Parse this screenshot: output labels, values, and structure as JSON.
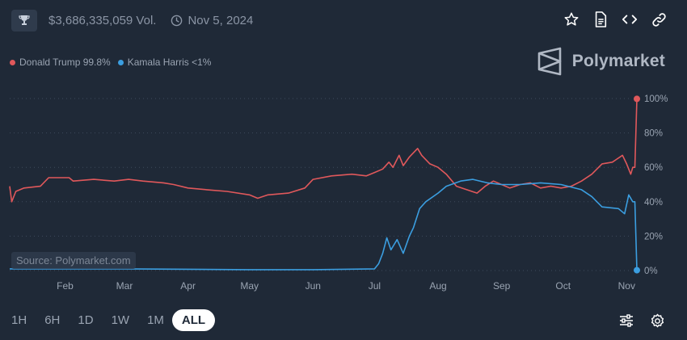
{
  "header": {
    "volume": "$3,686,335,059 Vol.",
    "date": "Nov 5, 2024"
  },
  "icons": {
    "trophy": "trophy-icon",
    "clock": "clock-icon",
    "star": "star-icon",
    "document": "document-icon",
    "code": "code-icon",
    "link": "link-icon",
    "sliders": "sliders-icon",
    "gear": "gear-icon"
  },
  "brand": {
    "name": "Polymarket"
  },
  "source": "Source: Polymarket.com",
  "time_ranges": [
    "1H",
    "6H",
    "1D",
    "1W",
    "1M",
    "ALL"
  ],
  "active_range": "ALL",
  "colors": {
    "trump": "#e0585b",
    "harris": "#3b9ee0",
    "background": "#1f2937"
  },
  "chart_data": {
    "type": "line",
    "xlabels": [
      "Feb",
      "Mar",
      "Apr",
      "May",
      "Jun",
      "Jul",
      "Aug",
      "Sep",
      "Oct",
      "Nov"
    ],
    "ytick_labels": [
      "0%",
      "20%",
      "40%",
      "60%",
      "80%",
      "100%"
    ],
    "ylim": [
      0,
      100
    ],
    "grid": true,
    "legend_position": "top-left",
    "series": [
      {
        "name": "Donald Trump 99.8%",
        "color": "#e0585b",
        "points": [
          [
            "2024-01-05",
            49
          ],
          [
            "2024-01-06",
            40
          ],
          [
            "2024-01-08",
            46
          ],
          [
            "2024-01-12",
            48
          ],
          [
            "2024-01-20",
            49
          ],
          [
            "2024-01-24",
            54
          ],
          [
            "2024-02-03",
            54
          ],
          [
            "2024-02-05",
            52
          ],
          [
            "2024-02-15",
            53
          ],
          [
            "2024-02-25",
            52
          ],
          [
            "2024-03-03",
            53
          ],
          [
            "2024-03-10",
            52
          ],
          [
            "2024-03-20",
            51
          ],
          [
            "2024-03-25",
            50
          ],
          [
            "2024-04-01",
            48
          ],
          [
            "2024-04-10",
            47
          ],
          [
            "2024-04-20",
            46
          ],
          [
            "2024-05-01",
            44
          ],
          [
            "2024-05-05",
            42
          ],
          [
            "2024-05-10",
            44
          ],
          [
            "2024-05-20",
            45
          ],
          [
            "2024-05-28",
            48
          ],
          [
            "2024-06-01",
            53
          ],
          [
            "2024-06-10",
            55
          ],
          [
            "2024-06-20",
            56
          ],
          [
            "2024-06-27",
            55
          ],
          [
            "2024-07-01",
            57
          ],
          [
            "2024-07-05",
            59
          ],
          [
            "2024-07-08",
            63
          ],
          [
            "2024-07-10",
            60
          ],
          [
            "2024-07-13",
            67
          ],
          [
            "2024-07-15",
            61
          ],
          [
            "2024-07-18",
            66
          ],
          [
            "2024-07-22",
            71
          ],
          [
            "2024-07-24",
            67
          ],
          [
            "2024-07-28",
            62
          ],
          [
            "2024-08-01",
            60
          ],
          [
            "2024-08-05",
            56
          ],
          [
            "2024-08-10",
            49
          ],
          [
            "2024-08-15",
            47
          ],
          [
            "2024-08-20",
            45
          ],
          [
            "2024-08-24",
            49
          ],
          [
            "2024-08-28",
            52
          ],
          [
            "2024-09-01",
            50
          ],
          [
            "2024-09-05",
            48
          ],
          [
            "2024-09-10",
            50
          ],
          [
            "2024-09-15",
            51
          ],
          [
            "2024-09-20",
            48
          ],
          [
            "2024-09-25",
            49
          ],
          [
            "2024-09-30",
            48
          ],
          [
            "2024-10-05",
            49
          ],
          [
            "2024-10-10",
            52
          ],
          [
            "2024-10-15",
            56
          ],
          [
            "2024-10-20",
            62
          ],
          [
            "2024-10-25",
            63
          ],
          [
            "2024-10-30",
            67
          ],
          [
            "2024-11-01",
            62
          ],
          [
            "2024-11-03",
            56
          ],
          [
            "2024-11-04",
            60
          ],
          [
            "2024-11-05",
            60
          ],
          [
            "2024-11-06",
            99.8
          ]
        ]
      },
      {
        "name": "Kamala Harris <1%",
        "color": "#3b9ee0",
        "points": [
          [
            "2024-01-05",
            1
          ],
          [
            "2024-03-01",
            1
          ],
          [
            "2024-05-01",
            0.5
          ],
          [
            "2024-06-01",
            0.5
          ],
          [
            "2024-07-01",
            1
          ],
          [
            "2024-07-03",
            4
          ],
          [
            "2024-07-05",
            10
          ],
          [
            "2024-07-07",
            19
          ],
          [
            "2024-07-09",
            12
          ],
          [
            "2024-07-12",
            18
          ],
          [
            "2024-07-15",
            10
          ],
          [
            "2024-07-18",
            20
          ],
          [
            "2024-07-20",
            25
          ],
          [
            "2024-07-23",
            36
          ],
          [
            "2024-07-26",
            40
          ],
          [
            "2024-08-01",
            45
          ],
          [
            "2024-08-05",
            49
          ],
          [
            "2024-08-12",
            52
          ],
          [
            "2024-08-18",
            53
          ],
          [
            "2024-08-25",
            51
          ],
          [
            "2024-09-01",
            50
          ],
          [
            "2024-09-10",
            50
          ],
          [
            "2024-09-20",
            51
          ],
          [
            "2024-09-30",
            50
          ],
          [
            "2024-10-10",
            47
          ],
          [
            "2024-10-15",
            43
          ],
          [
            "2024-10-20",
            37
          ],
          [
            "2024-10-28",
            36
          ],
          [
            "2024-10-31",
            33
          ],
          [
            "2024-11-02",
            44
          ],
          [
            "2024-11-04",
            40
          ],
          [
            "2024-11-05",
            40
          ],
          [
            "2024-11-06",
            0.2
          ]
        ]
      }
    ]
  }
}
